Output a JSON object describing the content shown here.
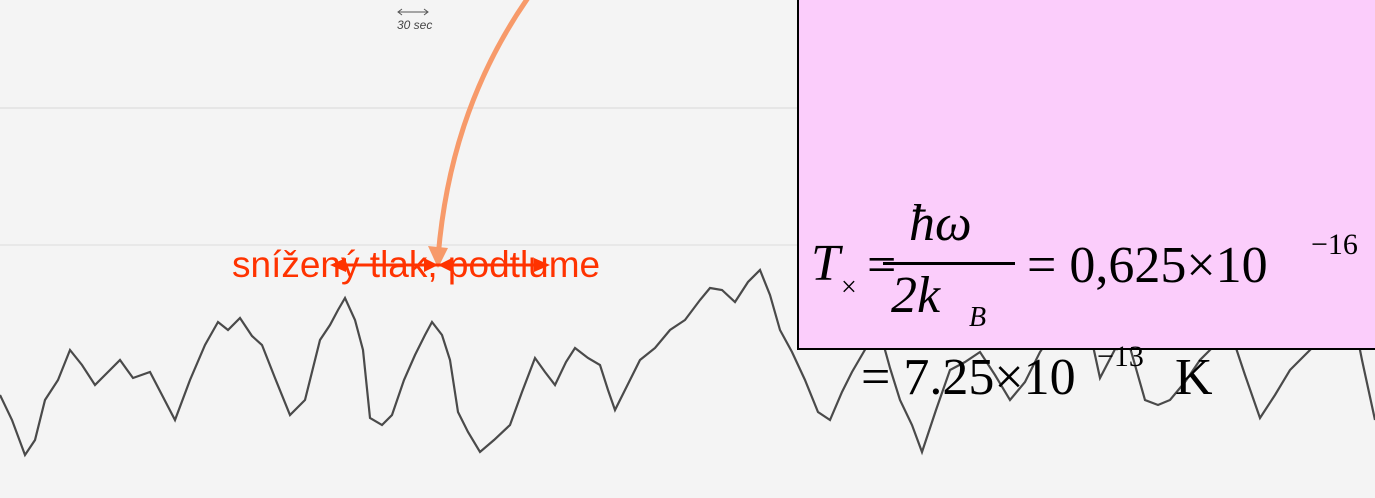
{
  "scale_label": "30 sec",
  "annotation": "snížený tlak,  podtlume",
  "formula": {
    "lhs": "T",
    "lhs_sub": "×",
    "equals": "=",
    "numerator": "ħω",
    "denominator": "2k",
    "denominator_sub": "B",
    "result_1": "= 0,625×10",
    "result_1_exp": "−16",
    "result_2": "= 7.25×10",
    "result_2_exp": "−13",
    "result_2_unit": "K"
  }
}
